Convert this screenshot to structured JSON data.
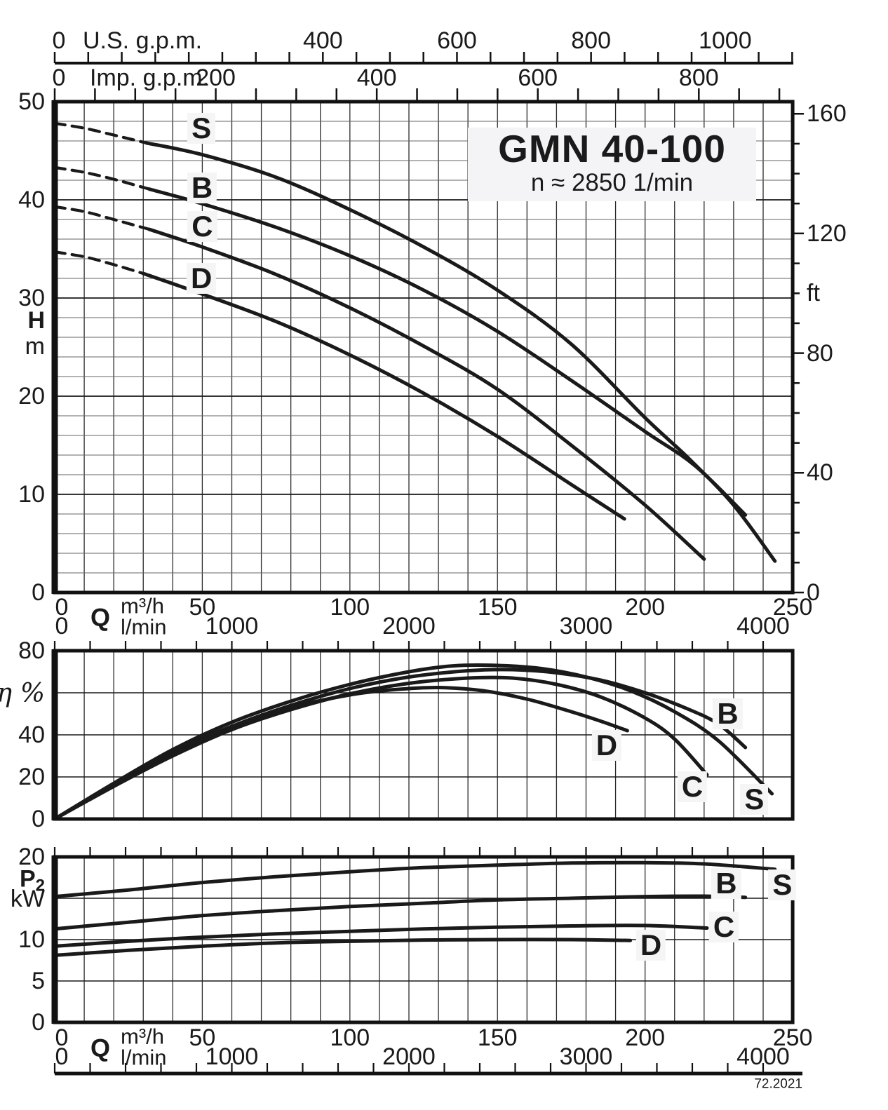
{
  "title": "GMN 40-100",
  "subtitle": "n ≈ 2850 1/min",
  "footer": "72.2021",
  "colors": {
    "ink": "#1a1a1a",
    "grid_minor": "#666666",
    "grid_major": "#1a1a1a",
    "grid_vert": "#2a2a2a",
    "border": "#111111",
    "label_halo": "#f5f5f5",
    "title_bg": "#f4f4f6"
  },
  "rulers": {
    "us": {
      "name": "U.S. g.p.m.",
      "zero_label": "0",
      "unit_per_m3h": 4.4029,
      "tick_step": 50,
      "tick_max": 1100,
      "labels": [
        400,
        600,
        800,
        1000
      ]
    },
    "imp": {
      "name": "Imp. g.p.m.",
      "zero_label": "0",
      "unit_per_m3h": 3.6662,
      "tick_step": 50,
      "tick_max": 900,
      "labels": [
        200,
        400,
        600,
        800
      ]
    },
    "lmin_bottom": {
      "unit_per_m3h": 16.6667,
      "tick_step": 200,
      "tick_max": 4000
    }
  },
  "q_axis": {
    "symbol": "Q",
    "unit_top": "m³/h",
    "unit_bottom": "l/min",
    "m3h_ticks": [
      0,
      50,
      100,
      150,
      200,
      250
    ],
    "lmin_ticks": [
      0,
      1000,
      2000,
      3000,
      4000
    ]
  },
  "chart_data": [
    {
      "id": "head",
      "type": "line",
      "title": "GMN 40-100",
      "subtitle": "n ≈ 2850 1/min",
      "xlabel": "Q (m³/h)",
      "ylabel": "H (m)",
      "y2label": "ft",
      "xlim": [
        0,
        250
      ],
      "ylim": [
        0,
        50
      ],
      "y2lim_ft": [
        0,
        164
      ],
      "grid": true,
      "y_ticks": [
        0,
        10,
        20,
        30,
        40,
        50
      ],
      "y2_ticks_ft": [
        0,
        40,
        80,
        120,
        160
      ],
      "axis_labels": [
        {
          "v": 50,
          "t": "50"
        },
        {
          "v": 40,
          "t": "40"
        },
        {
          "v": 30,
          "t": "30"
        },
        {
          "v": 27.7,
          "t": "H",
          "cls": "b"
        },
        {
          "v": 25.1,
          "t": "m"
        },
        {
          "v": 20,
          "t": "20"
        },
        {
          "v": 10,
          "t": "10"
        },
        {
          "v": 0,
          "t": "0"
        }
      ],
      "right_labels_ft": [
        {
          "v": 160,
          "t": "160"
        },
        {
          "v": 120,
          "t": "120"
        },
        {
          "v": 100,
          "t": "ft"
        },
        {
          "v": 80,
          "t": "80"
        },
        {
          "v": 40,
          "t": "40"
        },
        {
          "v": 0,
          "t": "0"
        }
      ],
      "series": [
        {
          "name": "S",
          "dash": [
            [
              0,
              47.8
            ],
            [
              10,
              47.3
            ],
            [
              20,
              46.6
            ],
            [
              31,
              45.8
            ]
          ],
          "points": [
            [
              31,
              45.8
            ],
            [
              50,
              44.6
            ],
            [
              75,
              42.3
            ],
            [
              100,
              39.0
            ],
            [
              125,
              35.2
            ],
            [
              150,
              30.8
            ],
            [
              175,
              25.3
            ],
            [
              200,
              17.8
            ],
            [
              215,
              13.6
            ],
            [
              230,
              8.9
            ],
            [
              244,
              3.2
            ]
          ],
          "label": {
            "q": 49.7,
            "v": 47.3
          }
        },
        {
          "name": "B",
          "dash": [
            [
              0,
              43.3
            ],
            [
              10,
              42.8
            ],
            [
              20,
              42.1
            ],
            [
              32,
              41.1
            ]
          ],
          "points": [
            [
              32,
              41.1
            ],
            [
              50,
              39.6
            ],
            [
              75,
              37.2
            ],
            [
              100,
              34.3
            ],
            [
              125,
              30.8
            ],
            [
              150,
              26.6
            ],
            [
              175,
              21.6
            ],
            [
              200,
              16.4
            ],
            [
              217,
              12.9
            ],
            [
              234,
              7.9
            ]
          ],
          "label": {
            "q": 49.9,
            "v": 41.2
          }
        },
        {
          "name": "C",
          "dash": [
            [
              0,
              39.3
            ],
            [
              10,
              38.8
            ],
            [
              20,
              38.0
            ],
            [
              32,
              37.0
            ]
          ],
          "points": [
            [
              32,
              37.0
            ],
            [
              50,
              35.2
            ],
            [
              75,
              32.4
            ],
            [
              100,
              29.0
            ],
            [
              125,
              25.1
            ],
            [
              150,
              20.7
            ],
            [
              175,
              15.0
            ],
            [
              200,
              8.9
            ],
            [
              220,
              3.4
            ]
          ],
          "label": {
            "q": 50.0,
            "v": 37.3
          }
        },
        {
          "name": "D",
          "dash": [
            [
              0,
              34.7
            ],
            [
              10,
              34.2
            ],
            [
              20,
              33.4
            ],
            [
              30,
              32.5
            ]
          ],
          "points": [
            [
              30,
              32.5
            ],
            [
              50,
              30.4
            ],
            [
              75,
              27.6
            ],
            [
              100,
              24.2
            ],
            [
              125,
              20.3
            ],
            [
              150,
              15.9
            ],
            [
              175,
              11.0
            ],
            [
              193,
              7.5
            ]
          ],
          "label": {
            "q": 49.7,
            "v": 32.0
          }
        }
      ]
    },
    {
      "id": "efficiency",
      "type": "line",
      "xlabel": "Q (m³/h)",
      "ylabel": "η %",
      "xlim": [
        0,
        250
      ],
      "ylim": [
        0,
        80
      ],
      "grid": true,
      "y_ticks": [
        0,
        20,
        40,
        60,
        80
      ],
      "axis_labels": [
        {
          "v": 80,
          "t": "80"
        },
        {
          "v": 60,
          "t": "η %",
          "cls": "eta"
        },
        {
          "v": 40,
          "t": "40"
        },
        {
          "v": 20,
          "t": "20"
        },
        {
          "v": 0,
          "t": "0"
        }
      ],
      "series": [
        {
          "name": "S",
          "points": [
            [
              0,
              0
            ],
            [
              20,
              17
            ],
            [
              40,
              33
            ],
            [
              60,
              46
            ],
            [
              80,
              56
            ],
            [
              100,
              64
            ],
            [
              120,
              70
            ],
            [
              135,
              72.8
            ],
            [
              150,
              73
            ],
            [
              165,
              71.5
            ],
            [
              180,
              67.5
            ],
            [
              195,
              61
            ],
            [
              210,
              51
            ],
            [
              225,
              37
            ],
            [
              243,
              12
            ]
          ],
          "label": {
            "q": 237,
            "v": 9.3
          }
        },
        {
          "name": "B",
          "points": [
            [
              0,
              0
            ],
            [
              20,
              16
            ],
            [
              40,
              31
            ],
            [
              60,
              44
            ],
            [
              80,
              54
            ],
            [
              100,
              62
            ],
            [
              120,
              67.5
            ],
            [
              140,
              70.5
            ],
            [
              155,
              71
            ],
            [
              170,
              69.5
            ],
            [
              185,
              66
            ],
            [
              200,
              60
            ],
            [
              215,
              52
            ],
            [
              225,
              45
            ],
            [
              234,
              34
            ]
          ],
          "label": {
            "q": 228,
            "v": 50
          }
        },
        {
          "name": "C",
          "points": [
            [
              0,
              0
            ],
            [
              20,
              15.5
            ],
            [
              40,
              30
            ],
            [
              60,
              42.5
            ],
            [
              80,
              52
            ],
            [
              100,
              59.5
            ],
            [
              120,
              64.5
            ],
            [
              140,
              67
            ],
            [
              155,
              67
            ],
            [
              170,
              64
            ],
            [
              185,
              58
            ],
            [
              200,
              48
            ],
            [
              210,
              38
            ],
            [
              221,
              21
            ]
          ],
          "label": {
            "q": 216,
            "v": 15.3
          }
        },
        {
          "name": "D",
          "points": [
            [
              0,
              0
            ],
            [
              20,
              16.5
            ],
            [
              40,
              32
            ],
            [
              60,
              44
            ],
            [
              80,
              53
            ],
            [
              100,
              59
            ],
            [
              115,
              61.5
            ],
            [
              130,
              62.5
            ],
            [
              145,
              61
            ],
            [
              160,
              57
            ],
            [
              175,
              51
            ],
            [
              185,
              46.5
            ],
            [
              194,
              42
            ]
          ],
          "label": {
            "q": 187,
            "v": 35
          }
        }
      ]
    },
    {
      "id": "power",
      "type": "line",
      "xlabel": "Q (m³/h)",
      "ylabel": "P2 kW",
      "xlim": [
        0,
        250
      ],
      "ylim": [
        0,
        20
      ],
      "grid": true,
      "y_ticks": [
        0,
        5,
        10,
        15,
        20
      ],
      "axis_labels": [
        {
          "v": 20,
          "t": "20"
        },
        {
          "v": 17.1,
          "t": "P2",
          "cls": "p2"
        },
        {
          "v": 14.9,
          "t": "kW"
        },
        {
          "v": 10,
          "t": "10"
        },
        {
          "v": 5,
          "t": "5"
        },
        {
          "v": 0,
          "t": "0"
        }
      ],
      "series": [
        {
          "name": "S",
          "points": [
            [
              0,
              15.2
            ],
            [
              25,
              16.0
            ],
            [
              50,
              16.9
            ],
            [
              75,
              17.6
            ],
            [
              100,
              18.2
            ],
            [
              125,
              18.7
            ],
            [
              150,
              19.0
            ],
            [
              175,
              19.25
            ],
            [
              200,
              19.3
            ],
            [
              220,
              19.15
            ],
            [
              244,
              18.5
            ]
          ],
          "label": {
            "q": 246.5,
            "v": 16.6
          }
        },
        {
          "name": "B",
          "points": [
            [
              0,
              11.3
            ],
            [
              25,
              12.1
            ],
            [
              50,
              12.9
            ],
            [
              75,
              13.5
            ],
            [
              100,
              14.0
            ],
            [
              125,
              14.4
            ],
            [
              150,
              14.8
            ],
            [
              175,
              15.0
            ],
            [
              200,
              15.2
            ],
            [
              220,
              15.25
            ],
            [
              234,
              15.1
            ]
          ],
          "label": {
            "q": 227.5,
            "v": 16.8
          }
        },
        {
          "name": "C",
          "points": [
            [
              0,
              9.2
            ],
            [
              25,
              9.8
            ],
            [
              50,
              10.3
            ],
            [
              75,
              10.7
            ],
            [
              100,
              11.0
            ],
            [
              125,
              11.3
            ],
            [
              150,
              11.5
            ],
            [
              175,
              11.65
            ],
            [
              200,
              11.7
            ],
            [
              221,
              11.4
            ]
          ],
          "label": {
            "q": 226.7,
            "v": 11.5
          }
        },
        {
          "name": "D",
          "points": [
            [
              0,
              8.1
            ],
            [
              25,
              8.7
            ],
            [
              50,
              9.2
            ],
            [
              75,
              9.6
            ],
            [
              100,
              9.8
            ],
            [
              125,
              9.95
            ],
            [
              150,
              10.0
            ],
            [
              175,
              10.0
            ],
            [
              195,
              9.9
            ]
          ],
          "label": {
            "q": 202,
            "v": 9.3
          }
        }
      ]
    }
  ]
}
